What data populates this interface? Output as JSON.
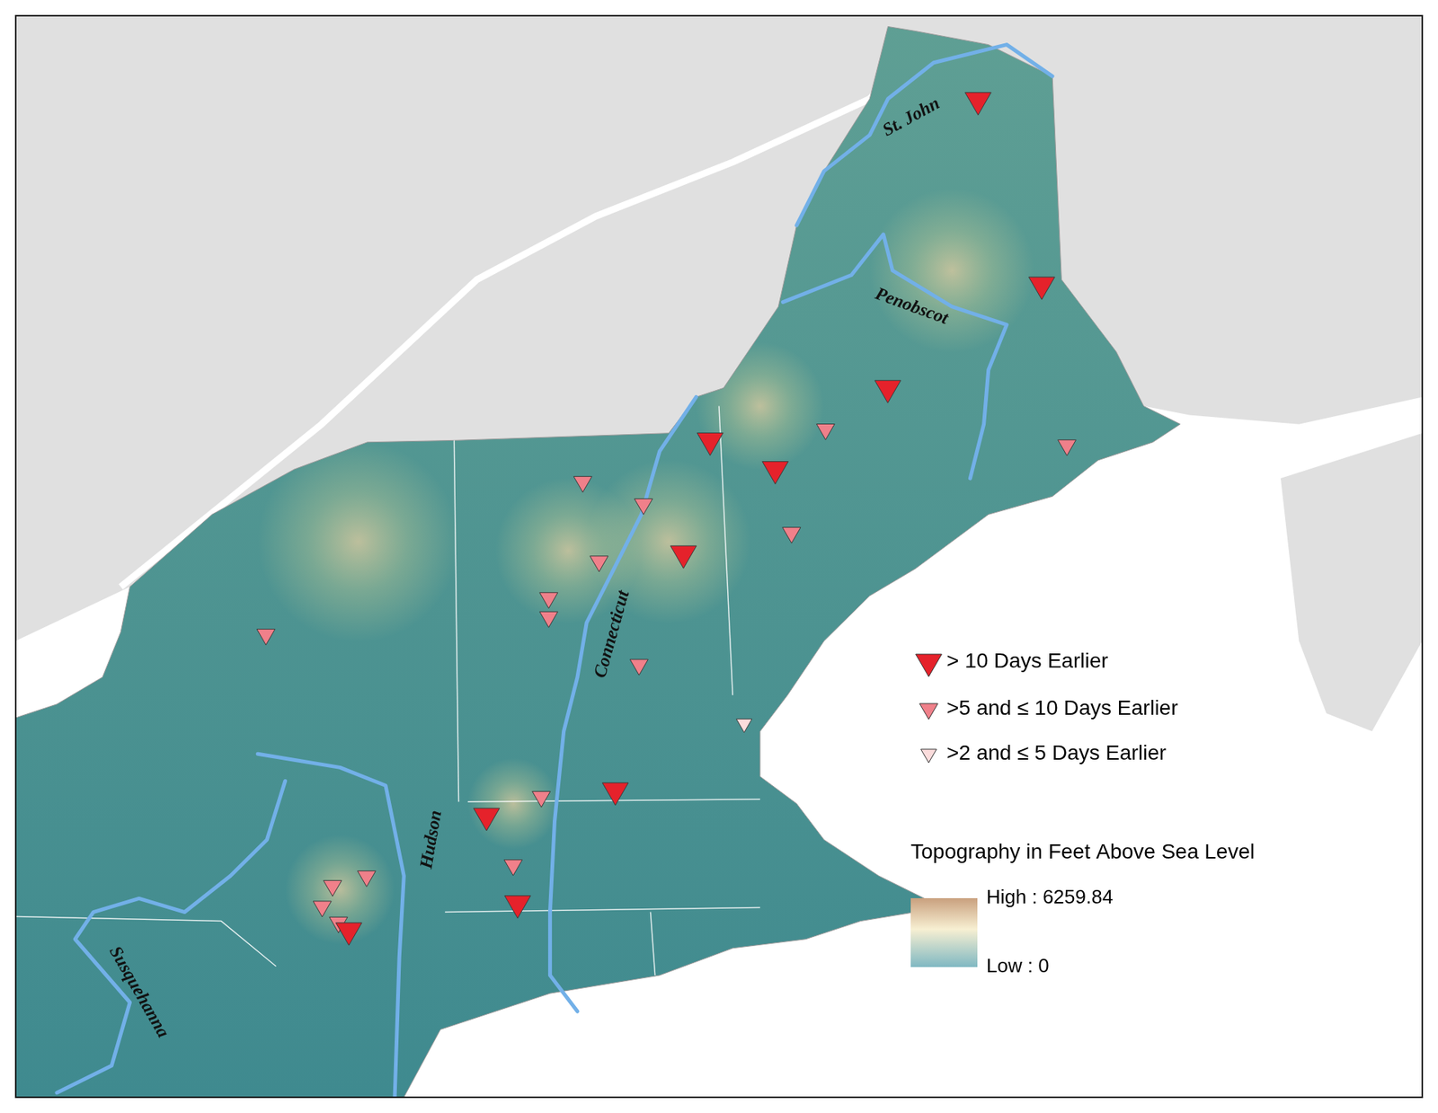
{
  "chart_data": {
    "type": "scatter",
    "xlim": [
      -76.2,
      -66.7
    ],
    "ylim": [
      40.8,
      47.6
    ],
    "grid": false,
    "tick_labels": false,
    "legend": "right",
    "series": [
      {
        "name": "> 10 Days Earlier",
        "color": "#e5222b",
        "marker": "triangle-down",
        "x": [
          -69.7,
          -69.27,
          -70.31,
          -71.51,
          -71.07,
          -71.69,
          -72.15,
          -73.02,
          -72.81,
          -73.95
        ],
        "y": [
          47.07,
          45.91,
          45.26,
          44.93,
          44.75,
          44.22,
          42.73,
          42.57,
          42.02,
          41.85
        ]
      },
      {
        "name": ">5 and ≤ 10 Days Earlier",
        "color": "#f0808a",
        "marker": "triangle-down",
        "x": [
          -70.73,
          -69.1,
          -72.37,
          -71.96,
          -70.96,
          -72.26,
          -72.6,
          -72.6,
          -74.51,
          -71.99,
          -72.65,
          -72.84,
          -74.06,
          -73.83,
          -74.13,
          -74.02
        ],
        "y": [
          45.0,
          44.9,
          44.67,
          44.53,
          44.35,
          44.17,
          43.94,
          43.82,
          43.71,
          43.52,
          42.69,
          42.26,
          42.13,
          42.19,
          42.0,
          41.9
        ]
      },
      {
        "name": ">2 and ≤ 5 Days Earlier",
        "color": "#fbdcdc",
        "marker": "triangle-down",
        "x": [
          -71.28
        ],
        "y": [
          43.15
        ]
      }
    ],
    "annotations": [
      {
        "text": "St. John",
        "x": -70.15,
        "y": 46.96
      },
      {
        "text": "Penobscot",
        "x": -70.15,
        "y": 45.77
      },
      {
        "text": "Connecticut",
        "x": -72.17,
        "y": 43.71
      },
      {
        "text": "Hudson",
        "x": -73.39,
        "y": 42.42
      },
      {
        "text": "Susquehanna",
        "x": -75.37,
        "y": 41.46
      }
    ],
    "colorbar": {
      "title": "Topography in Feet Above Sea Level",
      "range": [
        0,
        6259.84
      ],
      "ticks": [
        {
          "value": 6259.84,
          "label": "High : 6259.84"
        },
        {
          "value": 0,
          "label": "Low : 0"
        }
      ]
    }
  }
}
